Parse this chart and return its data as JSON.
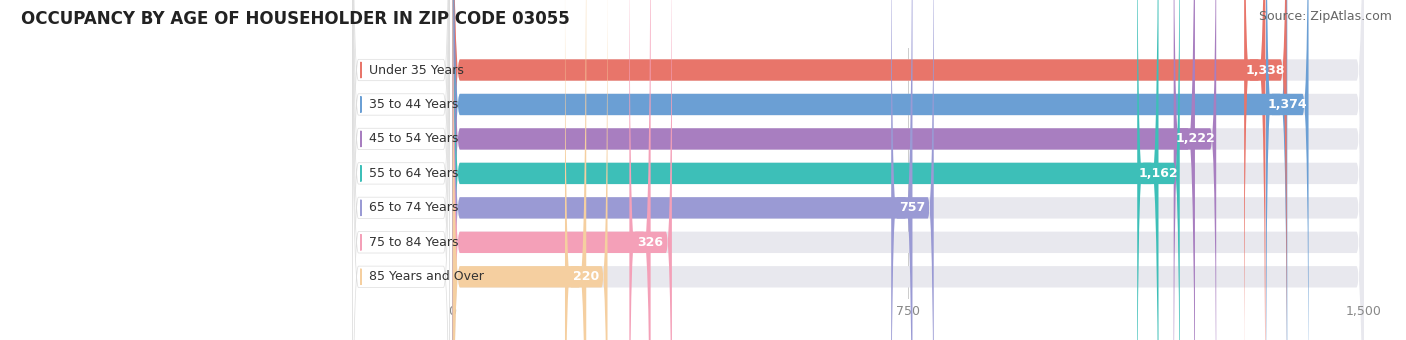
{
  "title": "OCCUPANCY BY AGE OF HOUSEHOLDER IN ZIP CODE 03055",
  "source": "Source: ZipAtlas.com",
  "categories": [
    "Under 35 Years",
    "35 to 44 Years",
    "45 to 54 Years",
    "55 to 64 Years",
    "65 to 74 Years",
    "75 to 84 Years",
    "85 Years and Over"
  ],
  "values": [
    1338,
    1374,
    1222,
    1162,
    757,
    326,
    220
  ],
  "bar_colors": [
    "#E8756A",
    "#6B9FD4",
    "#A87EC0",
    "#3DBFB8",
    "#9A9AD4",
    "#F4A0B8",
    "#F5CFA0"
  ],
  "bar_bg_color": "#E8E8EE",
  "label_pill_color": "#FFFFFF",
  "xlim": [
    0,
    1500
  ],
  "xticks": [
    0,
    750,
    1500
  ],
  "title_fontsize": 12,
  "source_fontsize": 9,
  "label_fontsize": 9,
  "value_fontsize": 9,
  "background_color": "#ffffff",
  "tick_color": "#888888"
}
